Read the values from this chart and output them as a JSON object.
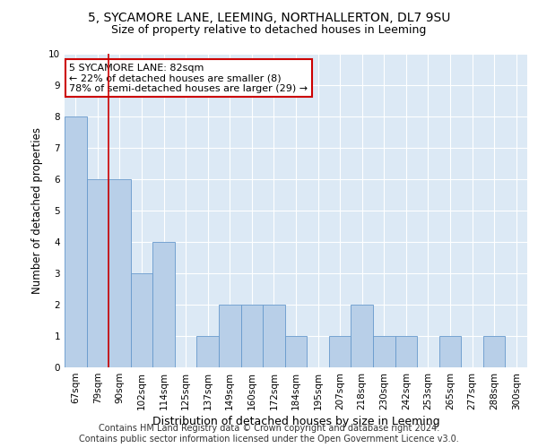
{
  "title1": "5, SYCAMORE LANE, LEEMING, NORTHALLERTON, DL7 9SU",
  "title2": "Size of property relative to detached houses in Leeming",
  "xlabel": "Distribution of detached houses by size in Leeming",
  "ylabel": "Number of detached properties",
  "footer1": "Contains HM Land Registry data © Crown copyright and database right 2024.",
  "footer2": "Contains public sector information licensed under the Open Government Licence v3.0.",
  "annotation_line1": "5 SYCAMORE LANE: 82sqm",
  "annotation_line2": "← 22% of detached houses are smaller (8)",
  "annotation_line3": "78% of semi-detached houses are larger (29) →",
  "categories": [
    "67sqm",
    "79sqm",
    "90sqm",
    "102sqm",
    "114sqm",
    "125sqm",
    "137sqm",
    "149sqm",
    "160sqm",
    "172sqm",
    "184sqm",
    "195sqm",
    "207sqm",
    "218sqm",
    "230sqm",
    "242sqm",
    "253sqm",
    "265sqm",
    "277sqm",
    "288sqm",
    "300sqm"
  ],
  "values": [
    8,
    6,
    6,
    3,
    4,
    0,
    1,
    2,
    2,
    2,
    1,
    0,
    1,
    2,
    1,
    1,
    0,
    1,
    0,
    1,
    0
  ],
  "bar_color": "#b8cfe8",
  "bar_edge_color": "#6699cc",
  "red_line_color": "#cc0000",
  "background_color": "#dce9f5",
  "annotation_box_color": "white",
  "annotation_box_edge": "#cc0000",
  "ylim": [
    0,
    10
  ],
  "yticks": [
    0,
    1,
    2,
    3,
    4,
    5,
    6,
    7,
    8,
    9,
    10
  ],
  "grid_color": "#ffffff",
  "title_fontsize": 10,
  "subtitle_fontsize": 9,
  "ylabel_fontsize": 8.5,
  "xlabel_fontsize": 9,
  "tick_fontsize": 7.5,
  "annotation_fontsize": 8,
  "footer_fontsize": 7
}
